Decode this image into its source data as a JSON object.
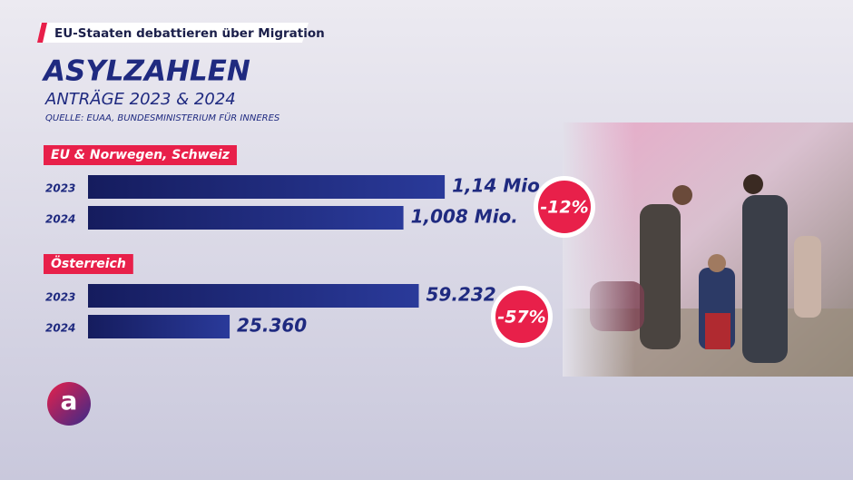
{
  "header": {
    "banner": "EU-Staaten debattieren über Migration",
    "title": "ASYLZAHLEN",
    "subtitle": "ANTRÄGE 2023 & 2024",
    "source": "QUELLE: EUAA, BUNDESMINISTERIUM FÜR INNERES",
    "logo": "a"
  },
  "chart_data": [
    {
      "type": "bar",
      "title": "EU & Norwegen, Schweiz",
      "categories": [
        "2023",
        "2024"
      ],
      "values": [
        1140000,
        1008000
      ],
      "value_labels": [
        "1,14 Mio.",
        "1,008 Mio."
      ],
      "xlim": [
        0,
        1160000
      ],
      "color": "#1f2a80",
      "change_label": "-12%"
    },
    {
      "type": "bar",
      "title": "Österreich",
      "categories": [
        "2023",
        "2024"
      ],
      "values": [
        59232,
        25360
      ],
      "value_labels": [
        "59.232",
        "25.360"
      ],
      "xlim": [
        0,
        65000
      ],
      "color": "#1f2a80",
      "change_label": "-57%"
    }
  ]
}
